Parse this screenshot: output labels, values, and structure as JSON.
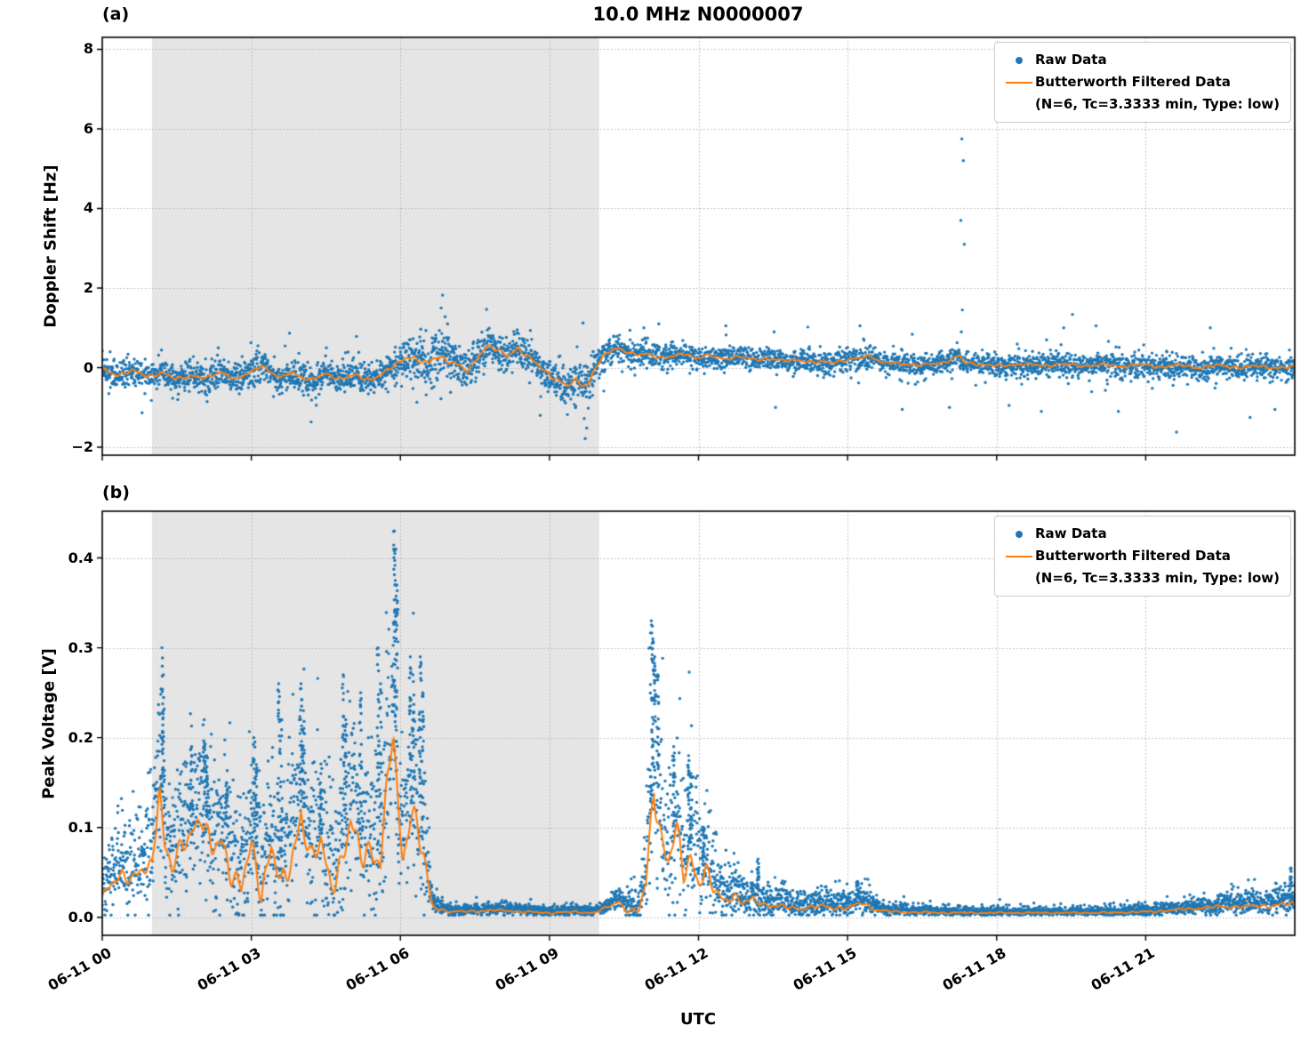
{
  "figure_title": "10.0 MHz N0000007",
  "colors": {
    "raw": "#1f77b4",
    "filtered": "#ff7f0e",
    "shading": "#e5e5e5",
    "grid": "#b0b0b0",
    "axis": "#000000",
    "background": "#ffffff"
  },
  "x_axis": {
    "label": "UTC",
    "range_hours": [
      0,
      24
    ],
    "ticks_hours": [
      0,
      3,
      6,
      9,
      12,
      15,
      18,
      21
    ],
    "tick_labels": [
      "06-11 00",
      "06-11 03",
      "06-11 06",
      "06-11 09",
      "06-11 12",
      "06-11 15",
      "06-11 18",
      "06-11 21"
    ]
  },
  "chart_data": [
    {
      "id": "a",
      "type": "scatter+line",
      "corner_label": "(a)",
      "title": "10.0 MHz N0000007",
      "ylabel": "Doppler Shift [Hz]",
      "ylim": [
        -2.2,
        8.3
      ],
      "yticks": [
        -2,
        0,
        2,
        4,
        6,
        8
      ],
      "ytick_labels": [
        "−2",
        "0",
        "2",
        "4",
        "6",
        "8"
      ],
      "shaded_hours": [
        1,
        10
      ],
      "grid": true,
      "legend": {
        "raw_label": "Raw Data",
        "filtered_label": "Butterworth Filtered Data",
        "filtered_sublabel": "(N=6, Tc=3.3333 min, Type: low)"
      },
      "points_per_day": 4600,
      "seed": 7,
      "filtered_line_hv": [
        [
          0,
          -0.05
        ],
        [
          0.3,
          -0.18
        ],
        [
          0.6,
          -0.08
        ],
        [
          0.9,
          -0.22
        ],
        [
          1.2,
          -0.12
        ],
        [
          1.5,
          -0.3
        ],
        [
          1.8,
          -0.18
        ],
        [
          2.1,
          -0.28
        ],
        [
          2.4,
          -0.1
        ],
        [
          2.7,
          -0.3
        ],
        [
          3.0,
          -0.12
        ],
        [
          3.2,
          0.08
        ],
        [
          3.4,
          -0.12
        ],
        [
          3.6,
          -0.28
        ],
        [
          3.8,
          -0.1
        ],
        [
          4.0,
          -0.22
        ],
        [
          4.2,
          -0.32
        ],
        [
          4.5,
          -0.15
        ],
        [
          4.8,
          -0.28
        ],
        [
          5.1,
          -0.2
        ],
        [
          5.4,
          -0.3
        ],
        [
          5.7,
          -0.12
        ],
        [
          5.95,
          0.12
        ],
        [
          6.15,
          0.3
        ],
        [
          6.35,
          0.18
        ],
        [
          6.55,
          0.08
        ],
        [
          6.75,
          0.32
        ],
        [
          6.95,
          0.2
        ],
        [
          7.15,
          0.05
        ],
        [
          7.35,
          -0.1
        ],
        [
          7.55,
          0.28
        ],
        [
          7.75,
          0.55
        ],
        [
          7.95,
          0.42
        ],
        [
          8.15,
          0.3
        ],
        [
          8.35,
          0.5
        ],
        [
          8.55,
          0.28
        ],
        [
          8.75,
          0.08
        ],
        [
          8.95,
          -0.12
        ],
        [
          9.15,
          -0.3
        ],
        [
          9.35,
          -0.48
        ],
        [
          9.55,
          -0.32
        ],
        [
          9.75,
          -0.45
        ],
        [
          9.95,
          0.05
        ],
        [
          10.15,
          0.35
        ],
        [
          10.35,
          0.5
        ],
        [
          10.55,
          0.42
        ],
        [
          10.75,
          0.3
        ],
        [
          10.95,
          0.35
        ],
        [
          11.15,
          0.28
        ],
        [
          11.35,
          0.25
        ],
        [
          11.55,
          0.3
        ],
        [
          11.75,
          0.35
        ],
        [
          11.95,
          0.25
        ],
        [
          12.2,
          0.3
        ],
        [
          12.5,
          0.22
        ],
        [
          12.8,
          0.28
        ],
        [
          13.1,
          0.2
        ],
        [
          13.4,
          0.24
        ],
        [
          13.7,
          0.16
        ],
        [
          14.0,
          0.2
        ],
        [
          14.4,
          0.12
        ],
        [
          14.8,
          0.16
        ],
        [
          15.2,
          0.22
        ],
        [
          15.45,
          0.32
        ],
        [
          15.7,
          0.12
        ],
        [
          16.1,
          0.1
        ],
        [
          16.5,
          0.06
        ],
        [
          16.9,
          0.12
        ],
        [
          17.25,
          0.3
        ],
        [
          17.35,
          0.12
        ],
        [
          17.7,
          0.08
        ],
        [
          18.1,
          0.04
        ],
        [
          18.5,
          0.1
        ],
        [
          18.9,
          0.04
        ],
        [
          19.3,
          0.1
        ],
        [
          19.7,
          0.04
        ],
        [
          20.1,
          0.08
        ],
        [
          20.5,
          0.03
        ],
        [
          20.9,
          0.08
        ],
        [
          21.3,
          0.02
        ],
        [
          21.7,
          0.06
        ],
        [
          22.1,
          0.0
        ],
        [
          22.5,
          0.06
        ],
        [
          22.9,
          0.0
        ],
        [
          23.3,
          0.05
        ],
        [
          23.7,
          -0.02
        ],
        [
          24,
          0.02
        ]
      ],
      "noise_spread_hv": [
        [
          0,
          0.17
        ],
        [
          2,
          0.18
        ],
        [
          4,
          0.18
        ],
        [
          5.5,
          0.19
        ],
        [
          6.2,
          0.24
        ],
        [
          6.6,
          0.3
        ],
        [
          6.9,
          0.34
        ],
        [
          7.2,
          0.26
        ],
        [
          7.6,
          0.2
        ],
        [
          8.2,
          0.22
        ],
        [
          8.8,
          0.2
        ],
        [
          9.3,
          0.24
        ],
        [
          9.7,
          0.3
        ],
        [
          10.1,
          0.2
        ],
        [
          10.6,
          0.16
        ],
        [
          11.5,
          0.15
        ],
        [
          13,
          0.15
        ],
        [
          15,
          0.15
        ],
        [
          17,
          0.14
        ],
        [
          19,
          0.14
        ],
        [
          21,
          0.15
        ],
        [
          23,
          0.15
        ],
        [
          24,
          0.16
        ]
      ],
      "outliers_hv": [
        [
          17.3,
          5.75
        ],
        [
          17.33,
          5.2
        ],
        [
          17.28,
          3.7
        ],
        [
          17.35,
          3.1
        ],
        [
          17.31,
          1.45
        ],
        [
          17.29,
          0.9
        ],
        [
          6.85,
          1.82
        ],
        [
          6.82,
          1.5
        ],
        [
          6.9,
          1.28
        ],
        [
          6.95,
          1.1
        ],
        [
          9.72,
          -1.78
        ],
        [
          9.75,
          -1.52
        ],
        [
          9.7,
          -1.28
        ],
        [
          21.62,
          -1.62
        ],
        [
          23.1,
          -1.25
        ],
        [
          18.9,
          -1.1
        ],
        [
          13.55,
          -1.0
        ],
        [
          15.25,
          1.05
        ],
        [
          16.1,
          -1.05
        ],
        [
          19.35,
          1.0
        ],
        [
          20.45,
          -1.1
        ],
        [
          22.3,
          1.0
        ],
        [
          14.2,
          1.02
        ],
        [
          12.55,
          1.05
        ],
        [
          11.2,
          1.1
        ],
        [
          10.9,
          1.0
        ],
        [
          17.05,
          -1.0
        ],
        [
          18.25,
          -0.95
        ],
        [
          20.0,
          1.05
        ],
        [
          23.6,
          -1.05
        ]
      ]
    },
    {
      "id": "b",
      "type": "scatter+line",
      "corner_label": "(b)",
      "title": "",
      "ylabel": "Peak Voltage [V]",
      "ylim": [
        -0.02,
        0.452
      ],
      "yticks": [
        0,
        0.1,
        0.2,
        0.3,
        0.4
      ],
      "ytick_labels": [
        "0.0",
        "0.1",
        "0.2",
        "0.3",
        "0.4"
      ],
      "shaded_hours": [
        1,
        10
      ],
      "grid": true,
      "legend": {
        "raw_label": "Raw Data",
        "filtered_label": "Butterworth Filtered Data",
        "filtered_sublabel": "(N=6, Tc=3.3333 min, Type: low)"
      },
      "points_per_day": 5200,
      "seed": 11,
      "filtered_line_hv": [
        [
          0,
          0.02
        ],
        [
          0.2,
          0.04
        ],
        [
          0.4,
          0.05
        ],
        [
          0.6,
          0.04
        ],
        [
          0.8,
          0.05
        ],
        [
          1.0,
          0.06
        ],
        [
          1.15,
          0.15
        ],
        [
          1.25,
          0.08
        ],
        [
          1.4,
          0.05
        ],
        [
          1.6,
          0.08
        ],
        [
          1.8,
          0.1
        ],
        [
          2.0,
          0.11
        ],
        [
          2.2,
          0.07
        ],
        [
          2.4,
          0.09
        ],
        [
          2.6,
          0.05
        ],
        [
          2.8,
          0.03
        ],
        [
          3.0,
          0.08
        ],
        [
          3.2,
          0.03
        ],
        [
          3.4,
          0.08
        ],
        [
          3.6,
          0.03
        ],
        [
          3.8,
          0.06
        ],
        [
          4.0,
          0.12
        ],
        [
          4.2,
          0.06
        ],
        [
          4.4,
          0.08
        ],
        [
          4.6,
          0.04
        ],
        [
          4.8,
          0.06
        ],
        [
          5.0,
          0.1
        ],
        [
          5.2,
          0.07
        ],
        [
          5.4,
          0.08
        ],
        [
          5.6,
          0.06
        ],
        [
          5.85,
          0.21
        ],
        [
          5.95,
          0.12
        ],
        [
          6.05,
          0.07
        ],
        [
          6.2,
          0.12
        ],
        [
          6.35,
          0.1
        ],
        [
          6.5,
          0.05
        ],
        [
          6.65,
          0.012
        ],
        [
          7.0,
          0.006
        ],
        [
          7.5,
          0.007
        ],
        [
          8.0,
          0.008
        ],
        [
          8.5,
          0.006
        ],
        [
          9.0,
          0.005
        ],
        [
          9.5,
          0.006
        ],
        [
          9.9,
          0.005
        ],
        [
          10.2,
          0.012
        ],
        [
          10.4,
          0.018
        ],
        [
          10.55,
          0.008
        ],
        [
          10.8,
          0.006
        ],
        [
          10.95,
          0.04
        ],
        [
          11.1,
          0.15
        ],
        [
          11.25,
          0.09
        ],
        [
          11.4,
          0.06
        ],
        [
          11.55,
          0.095
        ],
        [
          11.7,
          0.05
        ],
        [
          11.85,
          0.07
        ],
        [
          12.0,
          0.04
        ],
        [
          12.15,
          0.05
        ],
        [
          12.3,
          0.03
        ],
        [
          12.5,
          0.02
        ],
        [
          12.7,
          0.025
        ],
        [
          12.9,
          0.015
        ],
        [
          13.1,
          0.02
        ],
        [
          13.3,
          0.015
        ],
        [
          13.6,
          0.012
        ],
        [
          14.0,
          0.01
        ],
        [
          14.5,
          0.012
        ],
        [
          15.0,
          0.01
        ],
        [
          15.3,
          0.016
        ],
        [
          15.6,
          0.008
        ],
        [
          16.0,
          0.006
        ],
        [
          17.0,
          0.005
        ],
        [
          18.0,
          0.005
        ],
        [
          19.0,
          0.005
        ],
        [
          20.0,
          0.005
        ],
        [
          21.0,
          0.006
        ],
        [
          21.5,
          0.008
        ],
        [
          22.0,
          0.01
        ],
        [
          22.5,
          0.012
        ],
        [
          23.0,
          0.012
        ],
        [
          23.5,
          0.013
        ],
        [
          24,
          0.015
        ]
      ],
      "noise_spread_hv": [
        [
          0,
          0.02
        ],
        [
          0.5,
          0.03
        ],
        [
          1,
          0.04
        ],
        [
          2,
          0.05
        ],
        [
          3,
          0.05
        ],
        [
          4,
          0.06
        ],
        [
          5,
          0.06
        ],
        [
          6,
          0.07
        ],
        [
          6.45,
          0.07
        ],
        [
          6.65,
          0.008
        ],
        [
          7,
          0.004
        ],
        [
          9,
          0.004
        ],
        [
          10,
          0.004
        ],
        [
          10.5,
          0.008
        ],
        [
          10.9,
          0.02
        ],
        [
          11.1,
          0.07
        ],
        [
          11.6,
          0.06
        ],
        [
          12,
          0.045
        ],
        [
          12.4,
          0.025
        ],
        [
          13,
          0.013
        ],
        [
          13.5,
          0.01
        ],
        [
          14.5,
          0.01
        ],
        [
          15.3,
          0.01
        ],
        [
          15.7,
          0.005
        ],
        [
          16,
          0.004
        ],
        [
          18,
          0.003
        ],
        [
          20,
          0.003
        ],
        [
          21.5,
          0.005
        ],
        [
          22,
          0.006
        ],
        [
          23,
          0.008
        ],
        [
          24,
          0.01
        ]
      ],
      "spikes_hv": [
        [
          1.2,
          0.3
        ],
        [
          1.23,
          0.27
        ],
        [
          1.8,
          0.19
        ],
        [
          2.05,
          0.22
        ],
        [
          2.1,
          0.18
        ],
        [
          2.5,
          0.15
        ],
        [
          3.05,
          0.2
        ],
        [
          3.1,
          0.17
        ],
        [
          3.55,
          0.26
        ],
        [
          3.6,
          0.22
        ],
        [
          4.0,
          0.26
        ],
        [
          4.05,
          0.23
        ],
        [
          4.4,
          0.16
        ],
        [
          4.85,
          0.27
        ],
        [
          4.9,
          0.22
        ],
        [
          5.2,
          0.25
        ],
        [
          5.55,
          0.3
        ],
        [
          5.6,
          0.26
        ],
        [
          5.88,
          0.43
        ],
        [
          5.9,
          0.41
        ],
        [
          5.93,
          0.37
        ],
        [
          6.2,
          0.29
        ],
        [
          6.25,
          0.27
        ],
        [
          6.4,
          0.29
        ],
        [
          6.45,
          0.25
        ],
        [
          11.05,
          0.33
        ],
        [
          11.08,
          0.31
        ],
        [
          11.12,
          0.29
        ],
        [
          11.18,
          0.27
        ],
        [
          11.5,
          0.19
        ],
        [
          11.8,
          0.18
        ],
        [
          11.85,
          0.16
        ],
        [
          12.1,
          0.1
        ],
        [
          13.2,
          0.065
        ],
        [
          15.2,
          0.04
        ],
        [
          23.92,
          0.055
        ]
      ]
    }
  ]
}
